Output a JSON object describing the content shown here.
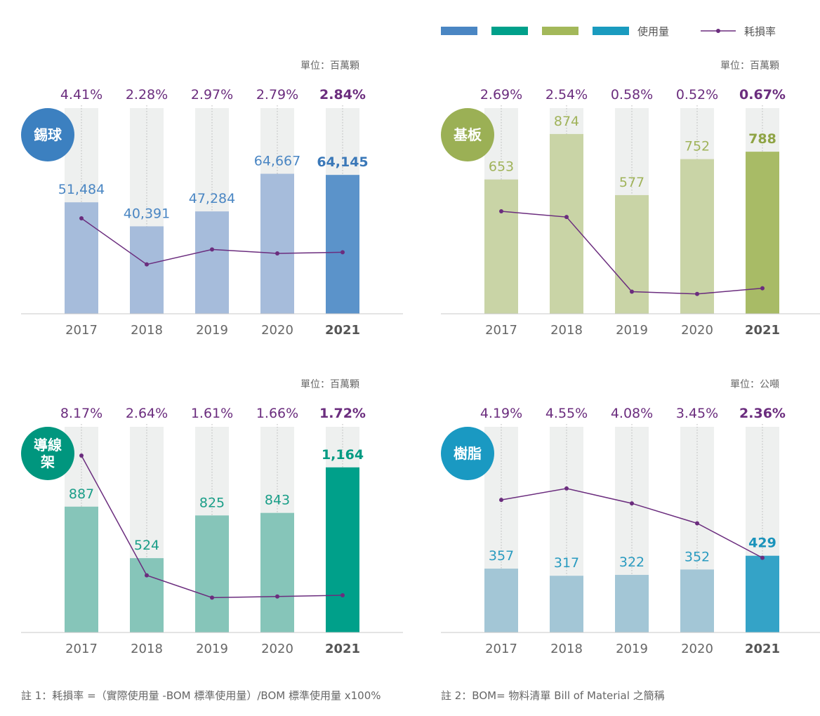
{
  "legend": {
    "swatch_colors": [
      "#4a86c3",
      "#00a08a",
      "#a3b85a",
      "#1a9bbf"
    ],
    "usage_label": "使用量",
    "loss_label": "耗損率",
    "loss_color": "#6b2d7e"
  },
  "chart_data": [
    {
      "type": "bar",
      "badge": "錫球",
      "badge_color": "#3c80c0",
      "unit": "單位：百萬顆",
      "categories": [
        "2017",
        "2018",
        "2019",
        "2020",
        "2021"
      ],
      "values": [
        51484,
        40391,
        47284,
        64667,
        64145
      ],
      "value_labels": [
        "51,484",
        "40,391",
        "47,284",
        "64,667",
        "64,145"
      ],
      "loss_rate": [
        4.41,
        2.28,
        2.97,
        2.79,
        2.84
      ],
      "loss_labels": [
        "4.41%",
        "2.28%",
        "2.97%",
        "2.79%",
        "2.84%"
      ],
      "bar_color": "#a6bcdb",
      "highlight_color": "#5b93ca",
      "label_color": "#4a86c3",
      "highlight_label_color": "#3a78b8",
      "ylim": [
        0,
        95000
      ],
      "loss_ylim": [
        0,
        9.5
      ]
    },
    {
      "type": "bar",
      "badge": "基板",
      "badge_color": "#9bb055",
      "unit": "單位：百萬顆",
      "categories": [
        "2017",
        "2018",
        "2019",
        "2020",
        "2021"
      ],
      "values": [
        653,
        874,
        577,
        752,
        788
      ],
      "value_labels": [
        "653",
        "874",
        "577",
        "752",
        "788"
      ],
      "loss_rate": [
        2.69,
        2.54,
        0.58,
        0.52,
        0.67
      ],
      "loss_labels": [
        "2.69%",
        "2.54%",
        "0.58%",
        "0.52%",
        "0.67%"
      ],
      "bar_color": "#c9d4a6",
      "highlight_color": "#a8bb66",
      "label_color": "#a0b35a",
      "highlight_label_color": "#8fa445",
      "ylim": [
        0,
        1000
      ],
      "loss_ylim": [
        0,
        5.4
      ]
    },
    {
      "type": "bar",
      "badge": "導線架",
      "badge_color": "#00967e",
      "unit": "單位：百萬顆",
      "categories": [
        "2017",
        "2018",
        "2019",
        "2020",
        "2021"
      ],
      "values": [
        887,
        524,
        825,
        843,
        1164
      ],
      "value_labels": [
        "887",
        "524",
        "825",
        "843",
        "1,164"
      ],
      "loss_rate": [
        8.17,
        2.64,
        1.61,
        1.66,
        1.72
      ],
      "loss_labels": [
        "8.17%",
        "2.64%",
        "1.61%",
        "1.66%",
        "1.72%"
      ],
      "bar_color": "#86c5b9",
      "highlight_color": "#00a08a",
      "label_color": "#1a9e88",
      "highlight_label_color": "#009a82",
      "ylim": [
        0,
        1450
      ],
      "loss_ylim": [
        0,
        9.5
      ]
    },
    {
      "type": "bar",
      "badge": "樹脂",
      "badge_color": "#1a99c2",
      "unit": "單位：公噸",
      "categories": [
        "2017",
        "2018",
        "2019",
        "2020",
        "2021"
      ],
      "values": [
        357,
        317,
        322,
        352,
        429
      ],
      "value_labels": [
        "357",
        "317",
        "322",
        "352",
        "429"
      ],
      "loss_rate": [
        4.19,
        4.55,
        4.08,
        3.45,
        2.36
      ],
      "loss_labels": [
        "4.19%",
        "4.55%",
        "4.08%",
        "3.45%",
        "2.36%"
      ],
      "bar_color": "#a3c6d6",
      "highlight_color": "#34a3c7",
      "label_color": "#2a9bc0",
      "highlight_label_color": "#1a93bb",
      "ylim": [
        0,
        1150
      ],
      "loss_ylim": [
        0,
        6.5
      ]
    }
  ],
  "notes": {
    "note1": "註 1：耗損率 =（實際使用量 -BOM 標準使用量）/BOM 標準使用量 x100%",
    "note2": "註 2：BOM= 物料清單 Bill of Material 之簡稱"
  }
}
